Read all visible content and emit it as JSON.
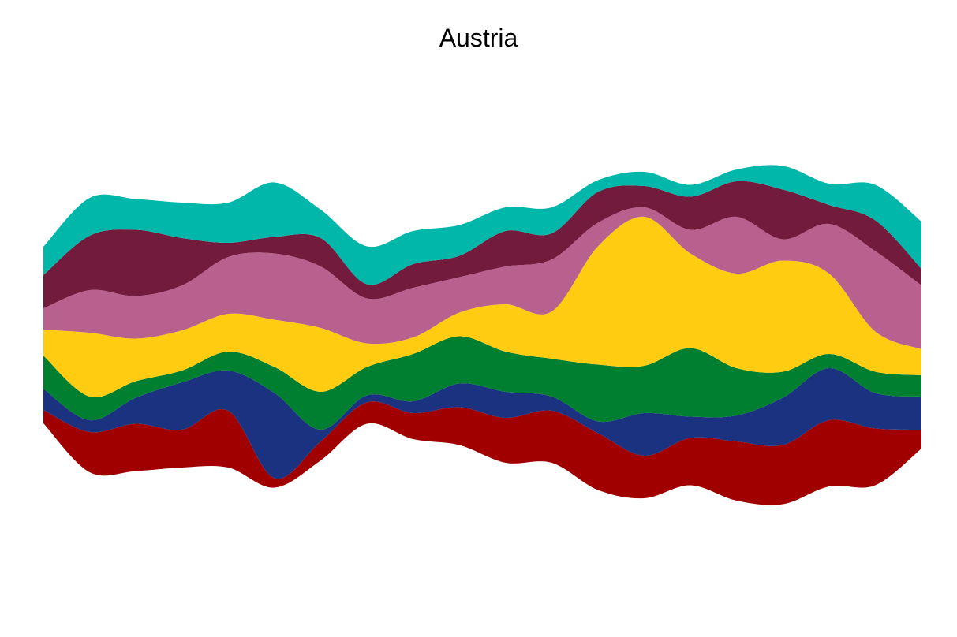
{
  "chart_data": {
    "type": "area",
    "subtype": "streamgraph",
    "title": "Austria",
    "xlabel": "",
    "ylabel": "",
    "axes_visible": false,
    "grid": false,
    "legend": "none",
    "x": [
      0,
      1,
      2,
      3,
      4,
      5,
      6,
      7,
      8,
      9,
      10,
      11,
      12,
      13,
      14,
      15,
      16,
      17,
      18,
      19
    ],
    "series": [
      {
        "color": "#A00000",
        "values": [
          2.8,
          8.5,
          10.0,
          8.0,
          12.0,
          2.0,
          4.0,
          4.5,
          5.5,
          8.0,
          9.5,
          11.0,
          12.0,
          9.0,
          10.0,
          12.5,
          12.5,
          14.0,
          12.0,
          4.0
        ]
      },
      {
        "color": "#1A3280",
        "values": [
          4.5,
          2.5,
          5.5,
          10.0,
          8.5,
          18.0,
          2.5,
          1.5,
          2.5,
          5.0,
          5.5,
          3.0,
          2.5,
          9.0,
          4.5,
          5.5,
          10.0,
          11.0,
          7.5,
          7.0
        ]
      },
      {
        "color": "#007F30",
        "values": [
          7.0,
          5.0,
          3.5,
          2.5,
          4.0,
          5.5,
          8.0,
          6.0,
          10.0,
          10.0,
          8.5,
          8.0,
          12.0,
          10.0,
          14.5,
          10.0,
          5.5,
          3.0,
          4.5,
          4.5
        ]
      },
      {
        "color": "#FFCC11",
        "values": [
          5.5,
          13.5,
          9.0,
          8.5,
          8.0,
          10.0,
          13.5,
          5.0,
          3.5,
          5.0,
          10.0,
          10.0,
          25.0,
          31.5,
          20.0,
          20.0,
          23.5,
          17.0,
          8.5,
          5.5
        ]
      },
      {
        "color": "#B8618E",
        "values": [
          4.5,
          9.0,
          9.0,
          9.5,
          12.0,
          14.0,
          13.0,
          9.5,
          10.5,
          7.5,
          8.0,
          11.0,
          5.0,
          2.0,
          5.0,
          12.0,
          4.5,
          10.5,
          17.0,
          13.5
        ]
      },
      {
        "color": "#721B3D",
        "values": [
          7.0,
          11.5,
          14.0,
          10.0,
          3.0,
          3.5,
          6.0,
          3.0,
          5.0,
          4.5,
          7.5,
          5.5,
          6.5,
          4.5,
          7.0,
          7.5,
          10.5,
          4.0,
          6.5,
          3.5
        ]
      },
      {
        "color": "#00B7AA",
        "values": [
          6.0,
          8.0,
          6.5,
          7.5,
          8.5,
          11.5,
          6.0,
          8.0,
          7.0,
          6.5,
          5.0,
          5.5,
          2.5,
          3.0,
          2.5,
          2.5,
          5.0,
          4.5,
          7.5,
          10.0
        ]
      }
    ]
  }
}
